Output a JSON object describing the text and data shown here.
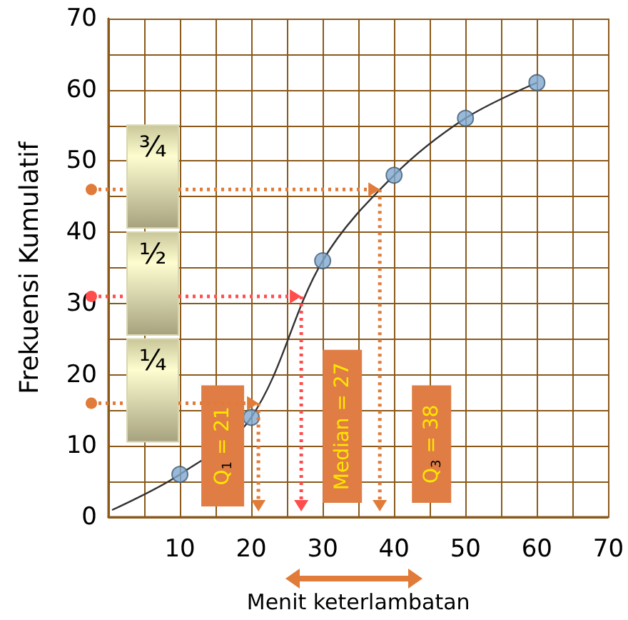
{
  "chart_data": {
    "type": "line",
    "xlabel": "Menit keterlambatan",
    "ylabel": "Frekuensi Kumulatif",
    "xlim": [
      0,
      70
    ],
    "ylim": [
      0,
      70
    ],
    "xticks": [
      {
        "value": 0,
        "label": null
      },
      {
        "value": 5,
        "label": null
      },
      10,
      {
        "value": 15,
        "label": null
      },
      20,
      {
        "value": 25,
        "label": null
      },
      30,
      {
        "value": 35,
        "label": null
      },
      40,
      {
        "value": 45,
        "label": null
      },
      50,
      {
        "value": 55,
        "label": null
      },
      60,
      {
        "value": 65,
        "label": null
      },
      70
    ],
    "yticks": [
      0,
      {
        "value": 5,
        "label": null
      },
      10,
      {
        "value": 15,
        "label": null
      },
      20,
      {
        "value": 25,
        "label": null
      },
      30,
      {
        "value": 35,
        "label": null
      },
      40,
      {
        "value": 45,
        "label": null
      },
      50,
      {
        "value": 55,
        "label": null
      },
      60,
      {
        "value": 65,
        "label": null
      },
      70
    ],
    "grid": true,
    "series": [
      {
        "type": "line",
        "color": "#333333",
        "x": [
          0.5,
          10,
          20,
          30,
          40,
          50,
          60
        ],
        "values": [
          1,
          6,
          14,
          36,
          48,
          56,
          61
        ],
        "marker": "none"
      },
      {
        "type": "scatter",
        "color": "#7fa7cf",
        "x": [
          10,
          20,
          30,
          40,
          50,
          60
        ],
        "values": [
          6,
          14,
          36,
          48,
          56,
          61
        ],
        "marker": "circle"
      }
    ],
    "annotations": [
      {
        "text": "¾",
        "x": 38,
        "y": 46
      },
      {
        "text": "½",
        "x": 27,
        "y": 31
      },
      {
        "text": "¼",
        "x": 21,
        "y": 16
      },
      "Q$_{1}$ = 21",
      "Median = 27",
      "Q$_{3}$ = 38"
    ]
  }
}
